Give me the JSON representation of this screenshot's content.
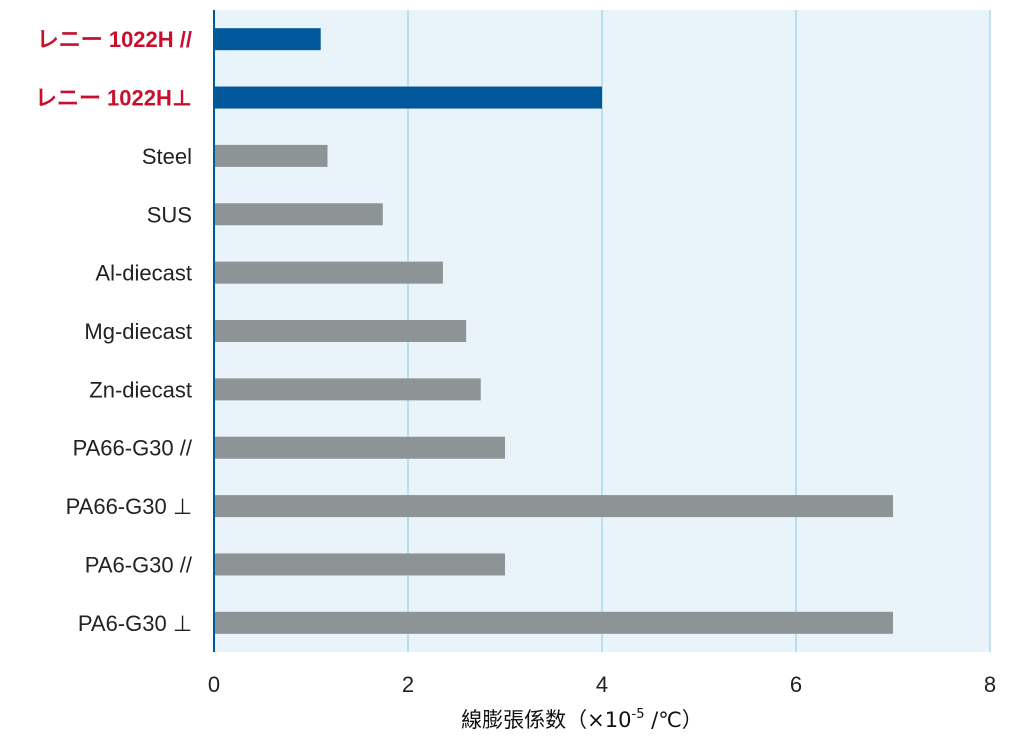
{
  "chart_data": {
    "type": "bar",
    "orientation": "horizontal",
    "categories": [
      "レニー 1022H //",
      "レニー 1022H⊥",
      "Steel",
      "SUS",
      "Al-diecast",
      "Mg-diecast",
      "Zn-diecast",
      "PA66-G30 //",
      "PA66-G30 ⊥",
      "PA6-G30 //",
      "PA6-G30 ⊥"
    ],
    "values": [
      1.1,
      4.0,
      1.17,
      1.74,
      2.36,
      2.6,
      2.75,
      3.0,
      7.0,
      3.0,
      7.0
    ],
    "xlabel": "線膨張係数（×10",
    "xlabel_sup": "-5",
    "xlabel_suffix": " /℃）",
    "xlim": [
      0,
      8
    ],
    "xticks": [
      0,
      2,
      4,
      6,
      8
    ],
    "grid": true,
    "colors": {
      "highlight_bar": "#00579a",
      "normal_bar": "#8c9496",
      "highlight_label": "#c8102e",
      "normal_label": "#222222",
      "plot_background": "#e8f4fa",
      "grid_line": "#8ec8e4",
      "axis_line": "#00579a"
    },
    "highlight_categories": [
      "レニー 1022H //",
      "レニー 1022H⊥"
    ]
  }
}
